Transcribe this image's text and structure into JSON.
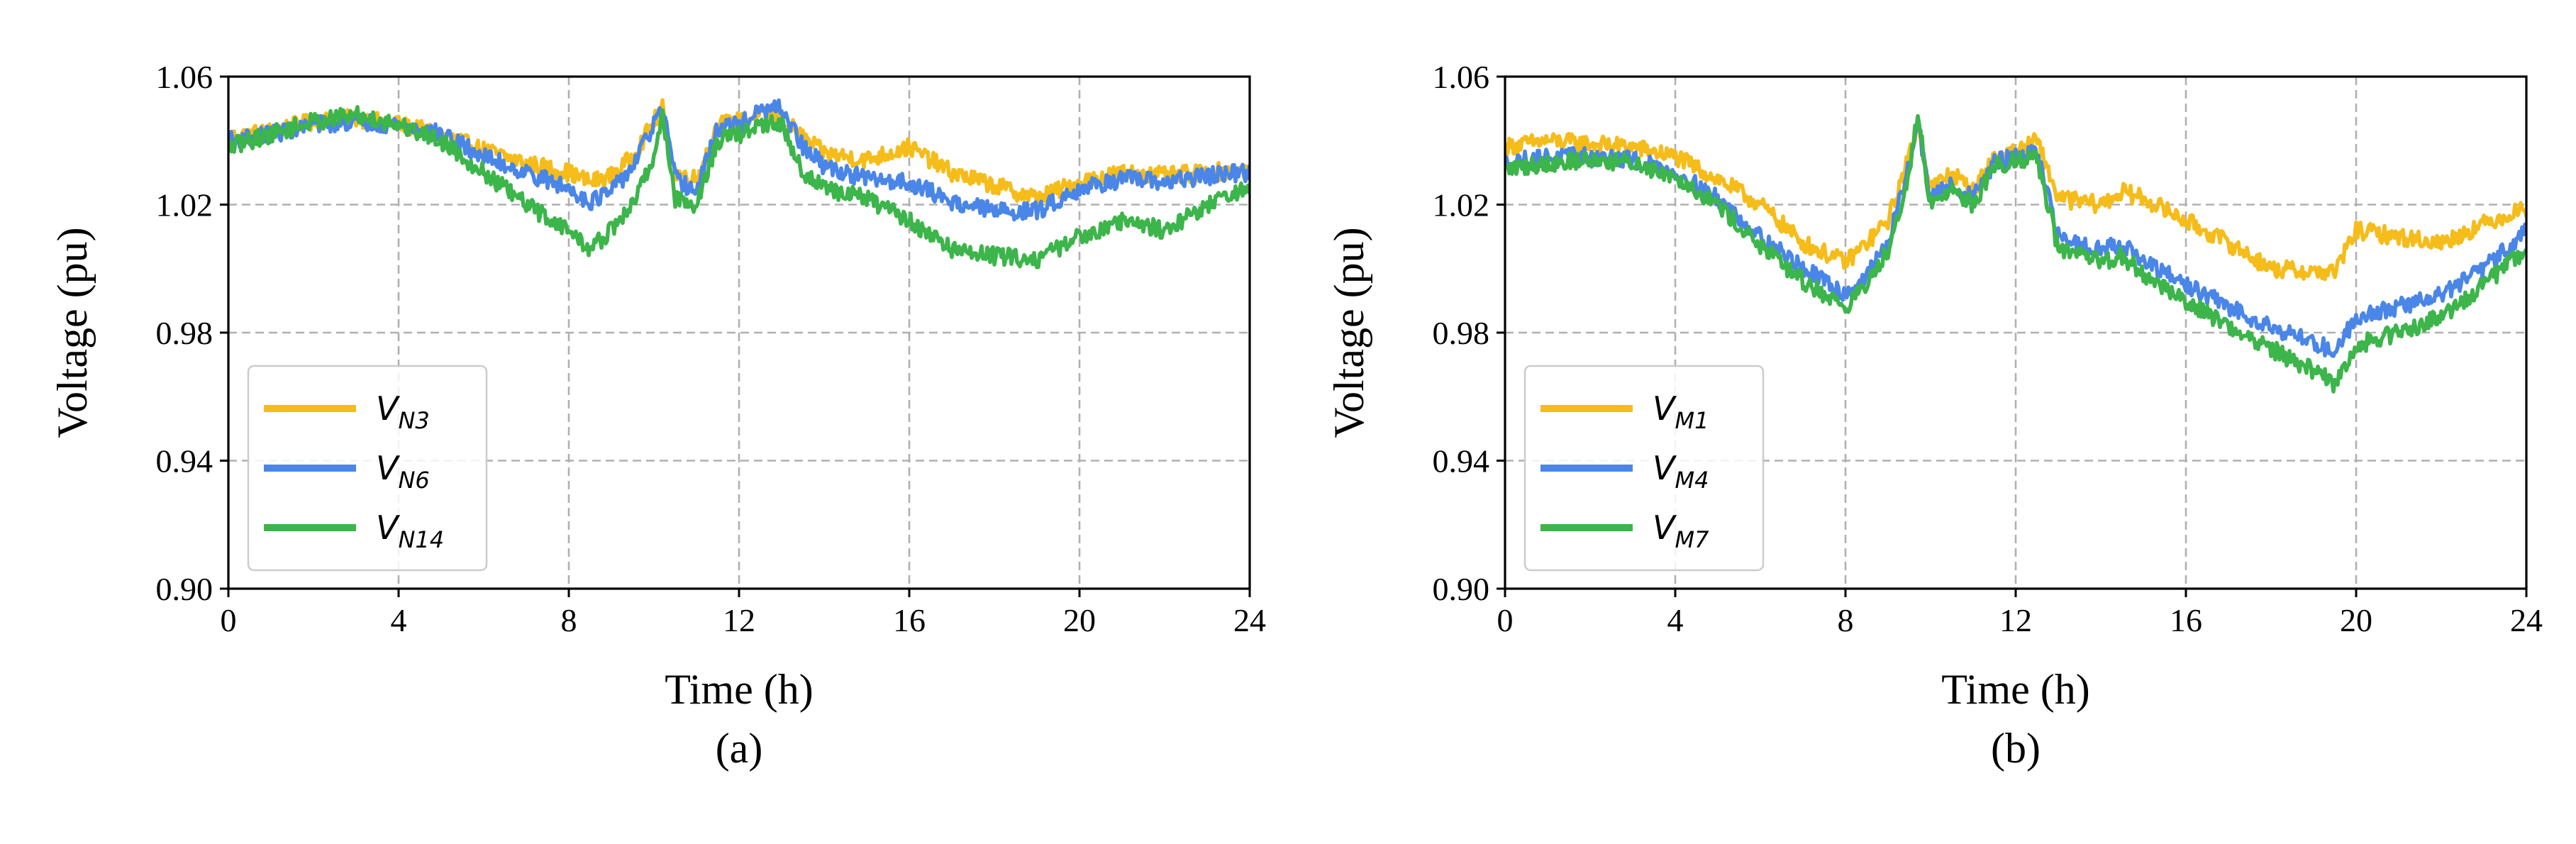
{
  "chart_data": [
    {
      "id": "a",
      "type": "line",
      "panel_label": "(a)",
      "title": "",
      "xlabel": "Time (h)",
      "ylabel": "Voltage (pu)",
      "xlim": [
        0,
        24
      ],
      "ylim": [
        0.9,
        1.06
      ],
      "xticks": [
        0,
        4,
        8,
        12,
        16,
        20,
        24
      ],
      "yticks": [
        0.9,
        0.94,
        0.98,
        1.02,
        1.06
      ],
      "ytick_labels": [
        "0.90",
        "0.94",
        "0.98",
        "1.02",
        "1.06"
      ],
      "grid": true,
      "legend_position": "lower-left",
      "series": [
        {
          "name": "V_N3",
          "label_main": "V",
          "label_sub": "N3",
          "color": "#F5BC1A",
          "x": [
            0,
            1,
            2,
            3,
            4,
            5,
            6,
            7,
            8,
            8.5,
            9,
            9.5,
            10,
            10.2,
            10.5,
            11,
            11.5,
            12,
            12.5,
            13,
            13.5,
            14,
            15,
            16,
            17,
            18,
            19,
            20,
            21,
            22,
            23,
            24
          ],
          "y": [
            1.041,
            1.043,
            1.046,
            1.047,
            1.045,
            1.042,
            1.037,
            1.033,
            1.03,
            1.027,
            1.029,
            1.035,
            1.046,
            1.05,
            1.03,
            1.028,
            1.045,
            1.046,
            1.048,
            1.047,
            1.041,
            1.036,
            1.034,
            1.038,
            1.03,
            1.026,
            1.022,
            1.027,
            1.03,
            1.029,
            1.03,
            1.031
          ]
        },
        {
          "name": "V_N6",
          "label_main": "V",
          "label_sub": "N6",
          "color": "#4A86E8",
          "x": [
            0,
            1,
            2,
            3,
            4,
            5,
            6,
            7,
            8,
            8.5,
            9,
            9.5,
            10,
            10.2,
            10.5,
            11,
            11.5,
            12,
            12.5,
            13,
            13.5,
            14,
            15,
            16,
            17,
            18,
            19,
            20,
            21,
            22,
            23,
            24
          ],
          "y": [
            1.04,
            1.042,
            1.045,
            1.046,
            1.045,
            1.042,
            1.035,
            1.03,
            1.025,
            1.021,
            1.024,
            1.032,
            1.045,
            1.05,
            1.028,
            1.024,
            1.044,
            1.045,
            1.049,
            1.05,
            1.038,
            1.032,
            1.028,
            1.027,
            1.021,
            1.018,
            1.018,
            1.025,
            1.028,
            1.027,
            1.029,
            1.03
          ]
        },
        {
          "name": "V_N14",
          "label_main": "V",
          "label_sub": "N14",
          "color": "#3CB54A",
          "x": [
            0,
            1,
            2,
            3,
            4,
            5,
            6,
            7,
            8,
            8.5,
            9,
            9.5,
            10,
            10.2,
            10.5,
            11,
            11.5,
            12,
            12.5,
            13,
            13.5,
            14,
            15,
            16,
            17,
            18,
            19,
            20,
            21,
            22,
            23,
            24
          ],
          "y": [
            1.038,
            1.042,
            1.046,
            1.048,
            1.045,
            1.04,
            1.03,
            1.02,
            1.012,
            1.006,
            1.012,
            1.02,
            1.035,
            1.048,
            1.022,
            1.02,
            1.04,
            1.042,
            1.045,
            1.045,
            1.03,
            1.025,
            1.022,
            1.015,
            1.006,
            1.004,
            1.003,
            1.01,
            1.015,
            1.012,
            1.02,
            1.025
          ]
        }
      ]
    },
    {
      "id": "b",
      "type": "line",
      "panel_label": "(b)",
      "title": "",
      "xlabel": "Time (h)",
      "ylabel": "Voltage (pu)",
      "xlim": [
        0,
        24
      ],
      "ylim": [
        0.9,
        1.06
      ],
      "xticks": [
        0,
        4,
        8,
        12,
        16,
        20,
        24
      ],
      "yticks": [
        0.9,
        0.94,
        0.98,
        1.02,
        1.06
      ],
      "ytick_labels": [
        "0.90",
        "0.94",
        "0.98",
        "1.02",
        "1.06"
      ],
      "grid": true,
      "legend_position": "lower-left",
      "series": [
        {
          "name": "V_M1",
          "label_main": "V",
          "label_sub": "M1",
          "color": "#F5BC1A",
          "x": [
            0,
            1,
            2,
            3,
            4,
            5,
            6,
            7,
            8,
            8.5,
            9,
            9.5,
            9.7,
            10,
            10.5,
            11,
            11.5,
            12,
            12.5,
            13,
            14,
            14.5,
            15,
            16,
            17,
            18,
            19,
            19.5,
            20,
            21,
            22,
            23,
            24
          ],
          "y": [
            1.038,
            1.04,
            1.039,
            1.038,
            1.035,
            1.028,
            1.02,
            1.008,
            1.002,
            1.008,
            1.015,
            1.035,
            1.045,
            1.025,
            1.03,
            1.024,
            1.035,
            1.036,
            1.04,
            1.022,
            1.02,
            1.024,
            1.022,
            1.015,
            1.008,
            1.0,
            0.999,
            0.999,
            1.012,
            1.01,
            1.008,
            1.014,
            1.019
          ]
        },
        {
          "name": "V_M4",
          "label_main": "V",
          "label_sub": "M4",
          "color": "#4A86E8",
          "x": [
            0,
            1,
            2,
            3,
            4,
            5,
            6,
            7,
            8,
            8.5,
            9,
            9.5,
            9.7,
            10,
            10.5,
            11,
            11.5,
            12,
            12.5,
            13,
            14,
            14.5,
            15,
            16,
            17,
            18,
            19,
            19.5,
            20,
            21,
            22,
            23,
            24
          ],
          "y": [
            1.033,
            1.035,
            1.035,
            1.034,
            1.03,
            1.022,
            1.01,
            1.0,
            0.992,
            0.998,
            1.008,
            1.032,
            1.046,
            1.022,
            1.026,
            1.022,
            1.033,
            1.035,
            1.036,
            1.01,
            1.006,
            1.008,
            1.002,
            0.995,
            0.988,
            0.982,
            0.977,
            0.974,
            0.985,
            0.988,
            0.992,
            1.0,
            1.012
          ]
        },
        {
          "name": "V_M7",
          "label_main": "V",
          "label_sub": "M7",
          "color": "#3CB54A",
          "x": [
            0,
            1,
            2,
            3,
            4,
            5,
            6,
            7,
            8,
            8.5,
            9,
            9.5,
            9.7,
            10,
            10.5,
            11,
            11.5,
            12,
            12.5,
            13,
            14,
            14.5,
            15,
            16,
            17,
            18,
            19,
            19.5,
            20,
            21,
            22,
            23,
            24
          ],
          "y": [
            1.031,
            1.033,
            1.034,
            1.033,
            1.029,
            1.02,
            1.007,
            0.996,
            0.988,
            0.995,
            1.006,
            1.03,
            1.048,
            1.02,
            1.025,
            1.02,
            1.032,
            1.034,
            1.035,
            1.006,
            1.002,
            1.004,
            0.998,
            0.99,
            0.982,
            0.975,
            0.968,
            0.964,
            0.976,
            0.98,
            0.985,
            0.995,
            1.006
          ]
        }
      ]
    }
  ]
}
